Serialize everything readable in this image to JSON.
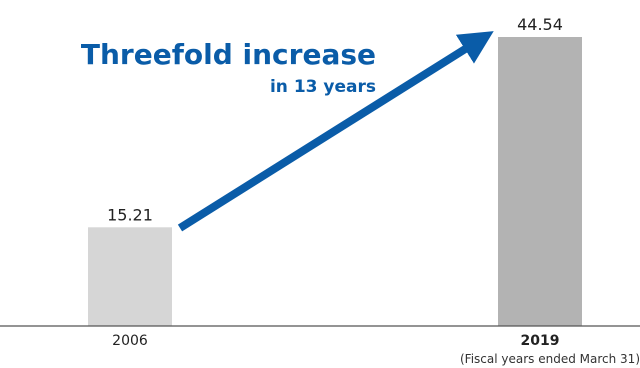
{
  "chart_data": {
    "type": "bar",
    "categories": [
      "2006",
      "2019"
    ],
    "values": [
      15.21,
      44.54
    ],
    "value_labels": [
      "15.21",
      "44.54"
    ],
    "ylim": [
      0,
      44.54
    ],
    "grid": false,
    "bold_categories": [
      "2019"
    ],
    "note": "(Fiscal years ended March 31)",
    "annotation": {
      "headline": "Threefold increase",
      "subline": "in 13 years"
    },
    "colors": {
      "bar_2006": "#d6d6d6",
      "bar_2019": "#b3b3b3",
      "arrow": "#0a5ca8",
      "headline": "#0a5ca8",
      "axis": "#555555"
    }
  }
}
